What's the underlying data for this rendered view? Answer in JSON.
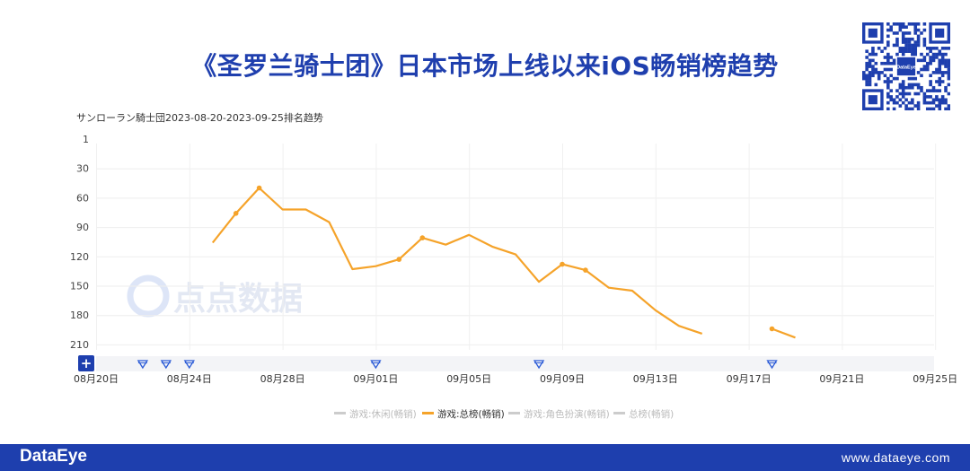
{
  "title": "《圣罗兰骑士团》日本市场上线以来iOS畅销榜趋势",
  "subtitle": "サンローラン騎士団2023-08-20-2023-09-25排名趋势",
  "watermark": "点点数据",
  "footer": {
    "brand": "DataEye",
    "site": "www.dataeye.com"
  },
  "qr": {
    "center_label": "DataEye"
  },
  "colors": {
    "accent": "#f5a32a",
    "brand": "#1e3fae",
    "inactive": "#cccccc",
    "marker": "#2b5bd7"
  },
  "chart_data": {
    "type": "line",
    "title": "サンローラン騎士団2023-08-20-2023-09-25排名趋势",
    "xlabel": "",
    "ylabel": "",
    "y_inverted": true,
    "ylim": [
      1,
      210
    ],
    "y_ticks": [
      1,
      30,
      60,
      90,
      120,
      150,
      180,
      210
    ],
    "x_start": "08月20日",
    "x_tick_labels": [
      "08月20日",
      "08月24日",
      "08月28日",
      "09月01日",
      "09月05日",
      "09月09日",
      "09月13日",
      "09月17日",
      "09月21日",
      "09月25日"
    ],
    "grid": true,
    "legend_position": "bottom",
    "legend": [
      {
        "name": "游戏:休闲(畅销)",
        "active": false
      },
      {
        "name": "游戏:总榜(畅销)",
        "active": true
      },
      {
        "name": "游戏:角色扮演(畅销)",
        "active": false
      },
      {
        "name": "总榜(畅销)",
        "active": false
      }
    ],
    "series": [
      {
        "name": "游戏:总榜(畅销)",
        "segments": [
          [
            {
              "x": "08月25日",
              "y": 106
            },
            {
              "x": "08月26日",
              "y": 76,
              "marker": true
            },
            {
              "x": "08月27日",
              "y": 50,
              "marker": true
            },
            {
              "x": "08月28日",
              "y": 72
            },
            {
              "x": "08月29日",
              "y": 72
            },
            {
              "x": "08月30日",
              "y": 85
            },
            {
              "x": "08月31日",
              "y": 133
            },
            {
              "x": "09月01日",
              "y": 130
            },
            {
              "x": "09月02日",
              "y": 123,
              "marker": true
            },
            {
              "x": "09月03日",
              "y": 101,
              "marker": true
            },
            {
              "x": "09月04日",
              "y": 108
            },
            {
              "x": "09月05日",
              "y": 98
            },
            {
              "x": "09月06日",
              "y": 110
            },
            {
              "x": "09月07日",
              "y": 118
            },
            {
              "x": "09月08日",
              "y": 146
            },
            {
              "x": "09月09日",
              "y": 128,
              "marker": true
            },
            {
              "x": "09月10日",
              "y": 134,
              "marker": true
            },
            {
              "x": "09月11日",
              "y": 152
            },
            {
              "x": "09月12日",
              "y": 155
            },
            {
              "x": "09月13日",
              "y": 175
            },
            {
              "x": "09月14日",
              "y": 191
            },
            {
              "x": "09月15日",
              "y": 199
            }
          ],
          [
            {
              "x": "09月18日",
              "y": 194,
              "marker": true
            },
            {
              "x": "09月19日",
              "y": 203
            }
          ]
        ]
      }
    ],
    "event_markers": [
      "08月22日",
      "08月23日",
      "08月24日",
      "09月01日",
      "09月08日",
      "09月18日"
    ]
  }
}
